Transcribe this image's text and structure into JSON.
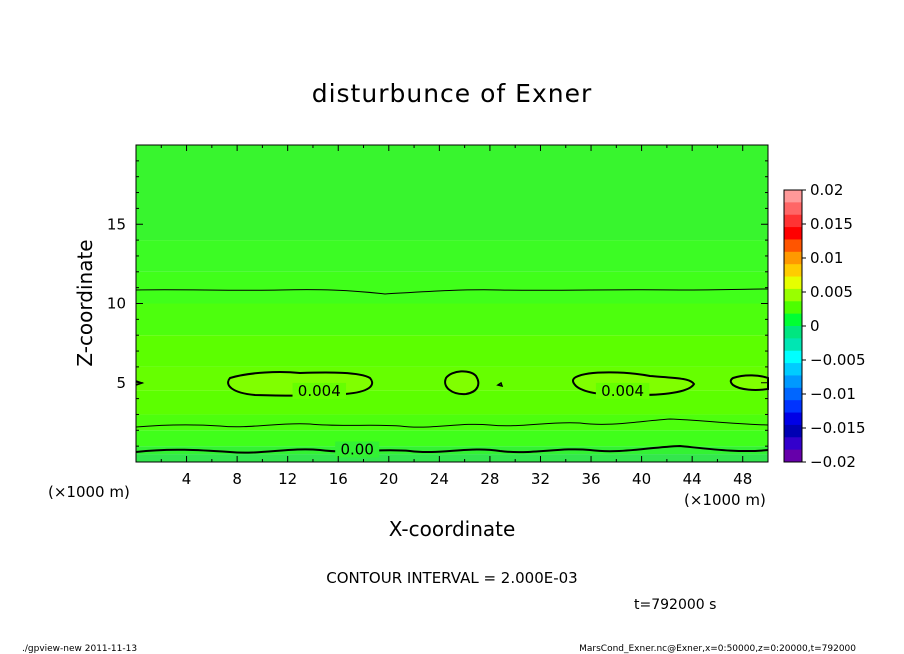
{
  "chart_data": {
    "type": "contour",
    "title": "disturbunce of Exner",
    "xlabel": "X-coordinate",
    "ylabel": "Z-coordinate",
    "x_unit": "(×1000 m)",
    "y_unit": "(×1000 m)",
    "xlim": [
      0,
      50
    ],
    "ylim": [
      0,
      20
    ],
    "x_ticks": [
      4,
      8,
      12,
      16,
      20,
      24,
      28,
      32,
      36,
      40,
      44,
      48
    ],
    "y_ticks": [
      5,
      10,
      15
    ],
    "contour_interval_text": "CONTOUR INTERVAL = 2.000E-03",
    "time_text": "t=792000 s",
    "contour_labels": [
      {
        "text": "0.004",
        "x": 14.5,
        "z": 4.3
      },
      {
        "text": "0.004",
        "x": 38.5,
        "z": 4.3
      },
      {
        "text": "0.00",
        "x": 17.5,
        "z": 0.6
      }
    ],
    "bands": [
      {
        "z_from": 0.0,
        "z_to": 0.5,
        "color": "#33e64d"
      },
      {
        "z_from": 0.5,
        "z_to": 1.0,
        "color": "#33f233"
      },
      {
        "z_from": 1.0,
        "z_to": 2.0,
        "color": "#40ff1a"
      },
      {
        "z_from": 2.0,
        "z_to": 3.0,
        "color": "#4dff0d"
      },
      {
        "z_from": 3.0,
        "z_to": 4.5,
        "color": "#5cff00"
      },
      {
        "z_from": 4.5,
        "z_to": 6.0,
        "color": "#66ff00"
      },
      {
        "z_from": 6.0,
        "z_to": 8.0,
        "color": "#5cff00"
      },
      {
        "z_from": 8.0,
        "z_to": 10.0,
        "color": "#4dff0d"
      },
      {
        "z_from": 10.0,
        "z_to": 12.0,
        "color": "#40ff1a"
      },
      {
        "z_from": 12.0,
        "z_to": 14.0,
        "color": "#3cfc24"
      },
      {
        "z_from": 14.0,
        "z_to": 20.0,
        "color": "#38f52e"
      }
    ],
    "colorbar": {
      "labels": [
        "0.02",
        "0.015",
        "0.01",
        "0.005",
        "0",
        "−0.005",
        "−0.01",
        "−0.015",
        "−0.02"
      ],
      "colors": [
        "#ff9999",
        "#ff6666",
        "#ff3333",
        "#ff0000",
        "#ff5500",
        "#ff9900",
        "#ffcc00",
        "#e6ff00",
        "#99ff00",
        "#4dff00",
        "#00ff33",
        "#00e680",
        "#00e6b3",
        "#00ffff",
        "#00ccff",
        "#0099ff",
        "#0066ff",
        "#0033ff",
        "#0000e6",
        "#0000b3",
        "#3300cc",
        "#6600aa"
      ]
    }
  },
  "footer": {
    "left": "./gpview-new  2011-11-13",
    "right": "MarsCond_Exner.nc@Exner,x=0:50000,z=0:20000,t=792000"
  }
}
